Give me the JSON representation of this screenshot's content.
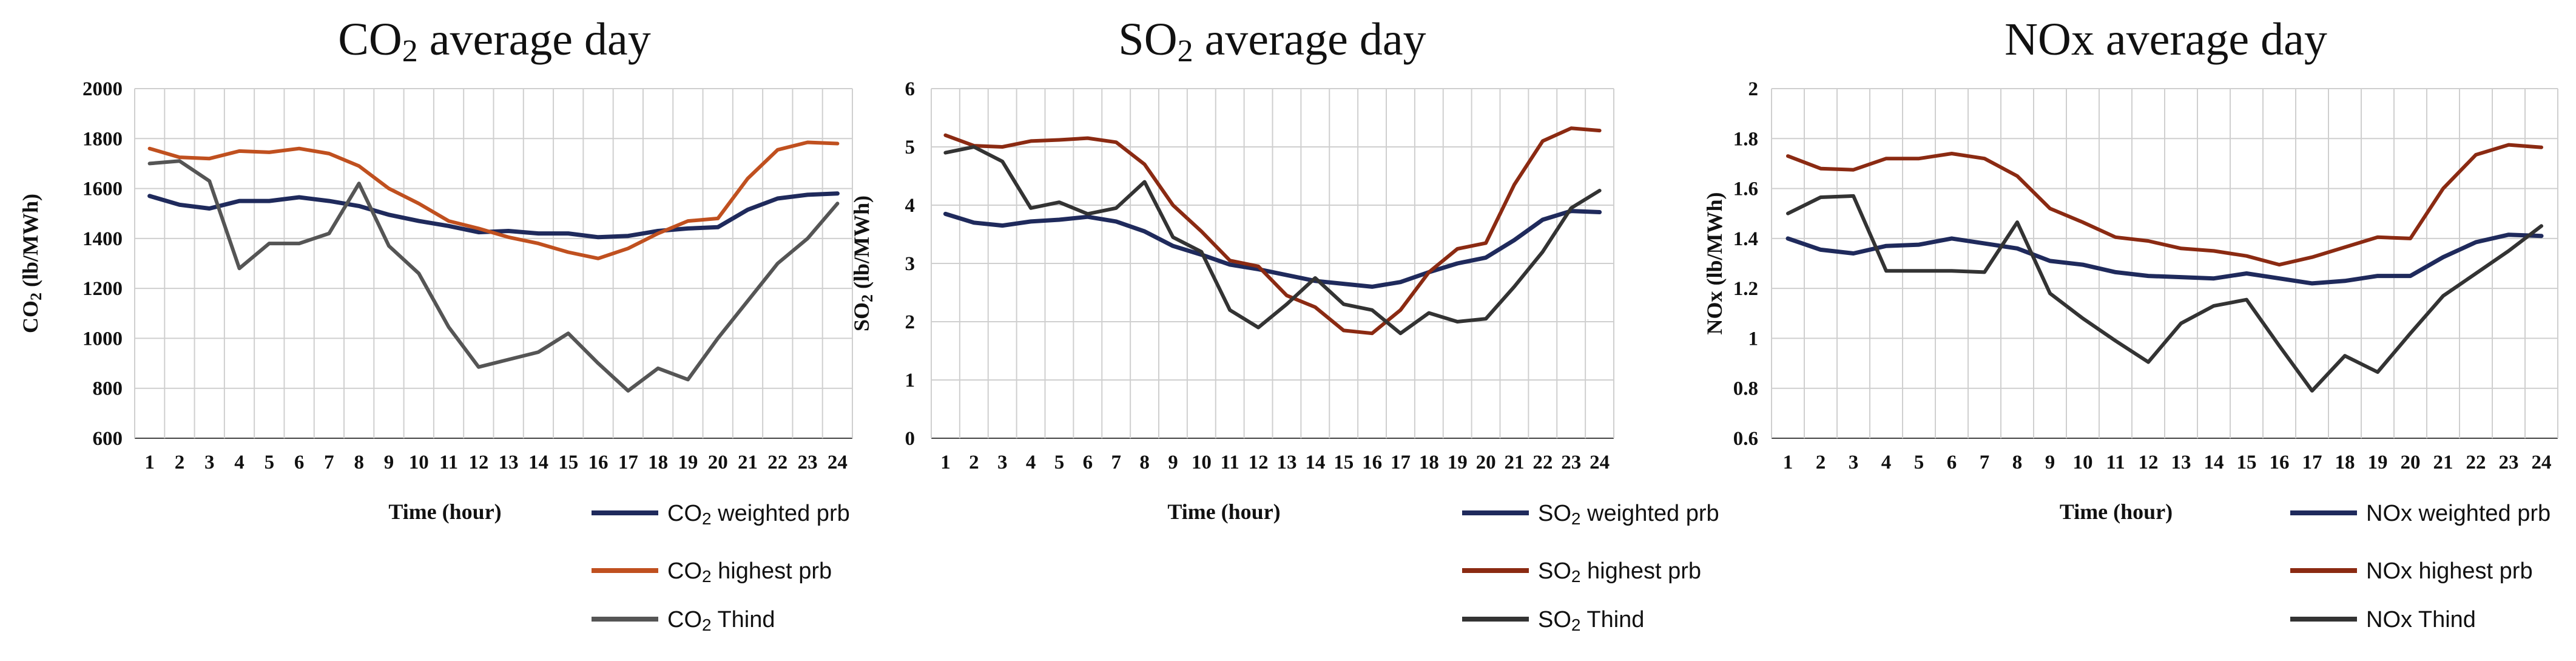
{
  "chart_data": [
    {
      "type": "line",
      "title_main": "CO",
      "title_sub": "2",
      "title_rest": " average day",
      "ylabel_main": "CO",
      "ylabel_sub": "2",
      "ylabel_rest": " (lb/MWh)",
      "xlabel": "Time (hour)",
      "x": [
        1,
        2,
        3,
        4,
        5,
        6,
        7,
        8,
        9,
        10,
        11,
        12,
        13,
        14,
        15,
        16,
        17,
        18,
        19,
        20,
        21,
        22,
        23,
        24
      ],
      "ylim": [
        600,
        2000
      ],
      "yticks": [
        "600",
        "800",
        "1000",
        "1200",
        "1400",
        "1600",
        "1800",
        "2000"
      ],
      "series": [
        {
          "name_main": "CO",
          "name_sub": "2",
          "name_rest": " weighted prb",
          "color": "#1f2a5c",
          "values": [
            1570,
            1535,
            1520,
            1550,
            1550,
            1565,
            1550,
            1530,
            1495,
            1470,
            1450,
            1425,
            1430,
            1420,
            1420,
            1405,
            1410,
            1430,
            1440,
            1445,
            1515,
            1560,
            1575,
            1580
          ]
        },
        {
          "name_main": "CO",
          "name_sub": "2",
          "name_rest": " highest prb",
          "color": "#c0501f",
          "values": [
            1760,
            1725,
            1720,
            1750,
            1745,
            1760,
            1740,
            1690,
            1600,
            1540,
            1470,
            1440,
            1405,
            1380,
            1345,
            1320,
            1360,
            1420,
            1470,
            1480,
            1640,
            1755,
            1785,
            1780
          ]
        },
        {
          "name_main": "CO",
          "name_sub": "2",
          "name_rest": " Thind",
          "color": "#555555",
          "values": [
            1700,
            1710,
            1630,
            1280,
            1380,
            1380,
            1420,
            1620,
            1370,
            1260,
            1045,
            885,
            915,
            945,
            1020,
            900,
            790,
            880,
            835,
            1000,
            1150,
            1300,
            1400,
            1540
          ]
        }
      ]
    },
    {
      "type": "line",
      "title_main": "SO",
      "title_sub": "2",
      "title_rest": " average day",
      "ylabel_main": "SO",
      "ylabel_sub": "2",
      "ylabel_rest": " (lb/MWh)",
      "xlabel": "Time (hour)",
      "x": [
        1,
        2,
        3,
        4,
        5,
        6,
        7,
        8,
        9,
        10,
        11,
        12,
        13,
        14,
        15,
        16,
        17,
        18,
        19,
        20,
        21,
        22,
        23,
        24
      ],
      "ylim": [
        0,
        6
      ],
      "yticks": [
        "0",
        "1",
        "2",
        "3",
        "4",
        "5",
        "6"
      ],
      "series": [
        {
          "name_main": "SO",
          "name_sub": "2",
          "name_rest": " weighted prb",
          "color": "#1f2a5c",
          "values": [
            3.85,
            3.7,
            3.65,
            3.72,
            3.75,
            3.8,
            3.72,
            3.55,
            3.3,
            3.15,
            2.98,
            2.9,
            2.8,
            2.7,
            2.65,
            2.6,
            2.68,
            2.85,
            3.0,
            3.1,
            3.4,
            3.75,
            3.9,
            3.88
          ]
        },
        {
          "name_main": "SO",
          "name_sub": "2",
          "name_rest": " highest prb",
          "color": "#8b2a12",
          "values": [
            5.2,
            5.02,
            5.0,
            5.1,
            5.12,
            5.15,
            5.08,
            4.7,
            4.0,
            3.55,
            3.05,
            2.95,
            2.45,
            2.25,
            1.85,
            1.8,
            2.2,
            2.85,
            3.25,
            3.35,
            4.35,
            5.1,
            5.32,
            5.28
          ]
        },
        {
          "name_main": "SO",
          "name_sub": "2",
          "name_rest": " Thind",
          "color": "#333333",
          "values": [
            4.9,
            5.0,
            4.75,
            3.95,
            4.05,
            3.85,
            3.95,
            4.4,
            3.45,
            3.2,
            2.2,
            1.9,
            2.3,
            2.75,
            2.3,
            2.2,
            1.8,
            2.15,
            2.0,
            2.05,
            2.6,
            3.2,
            3.95,
            4.25
          ]
        }
      ]
    },
    {
      "type": "line",
      "title_main": "NOx average day",
      "title_sub": "",
      "title_rest": "",
      "ylabel_main": "NOx (lb/MWh)",
      "ylabel_sub": "",
      "ylabel_rest": "",
      "xlabel": "Time (hour)",
      "x": [
        1,
        2,
        3,
        4,
        5,
        6,
        7,
        8,
        9,
        10,
        11,
        12,
        13,
        14,
        15,
        16,
        17,
        18,
        19,
        20,
        21,
        22,
        23,
        24
      ],
      "ylim": [
        0.6,
        2
      ],
      "yticks": [
        "0.6",
        "0.8",
        "1",
        "1.2",
        "1.4",
        "1.6",
        "1.8",
        "2"
      ],
      "series": [
        {
          "name_main": "NOx weighted prb",
          "name_sub": "",
          "name_rest": "",
          "color": "#1f2a5c",
          "values": [
            1.4,
            1.355,
            1.34,
            1.37,
            1.375,
            1.4,
            1.38,
            1.36,
            1.31,
            1.295,
            1.265,
            1.25,
            1.245,
            1.24,
            1.26,
            1.24,
            1.22,
            1.23,
            1.25,
            1.25,
            1.325,
            1.385,
            1.415,
            1.41
          ]
        },
        {
          "name_main": "NOx highest prb",
          "name_sub": "",
          "name_rest": "",
          "color": "#8b2a12",
          "values": [
            1.73,
            1.68,
            1.675,
            1.72,
            1.72,
            1.74,
            1.72,
            1.65,
            1.52,
            1.465,
            1.405,
            1.39,
            1.36,
            1.35,
            1.33,
            1.295,
            1.325,
            1.365,
            1.405,
            1.4,
            1.6,
            1.735,
            1.775,
            1.765
          ]
        },
        {
          "name_main": "NOx Thind",
          "name_sub": "",
          "name_rest": "",
          "color": "#333333",
          "values": [
            1.5,
            1.565,
            1.57,
            1.27,
            1.27,
            1.27,
            1.265,
            1.465,
            1.18,
            1.08,
            0.99,
            0.905,
            1.06,
            1.13,
            1.155,
            0.97,
            0.79,
            0.93,
            0.865,
            1.02,
            1.17,
            1.26,
            1.35,
            1.45
          ]
        }
      ]
    }
  ]
}
